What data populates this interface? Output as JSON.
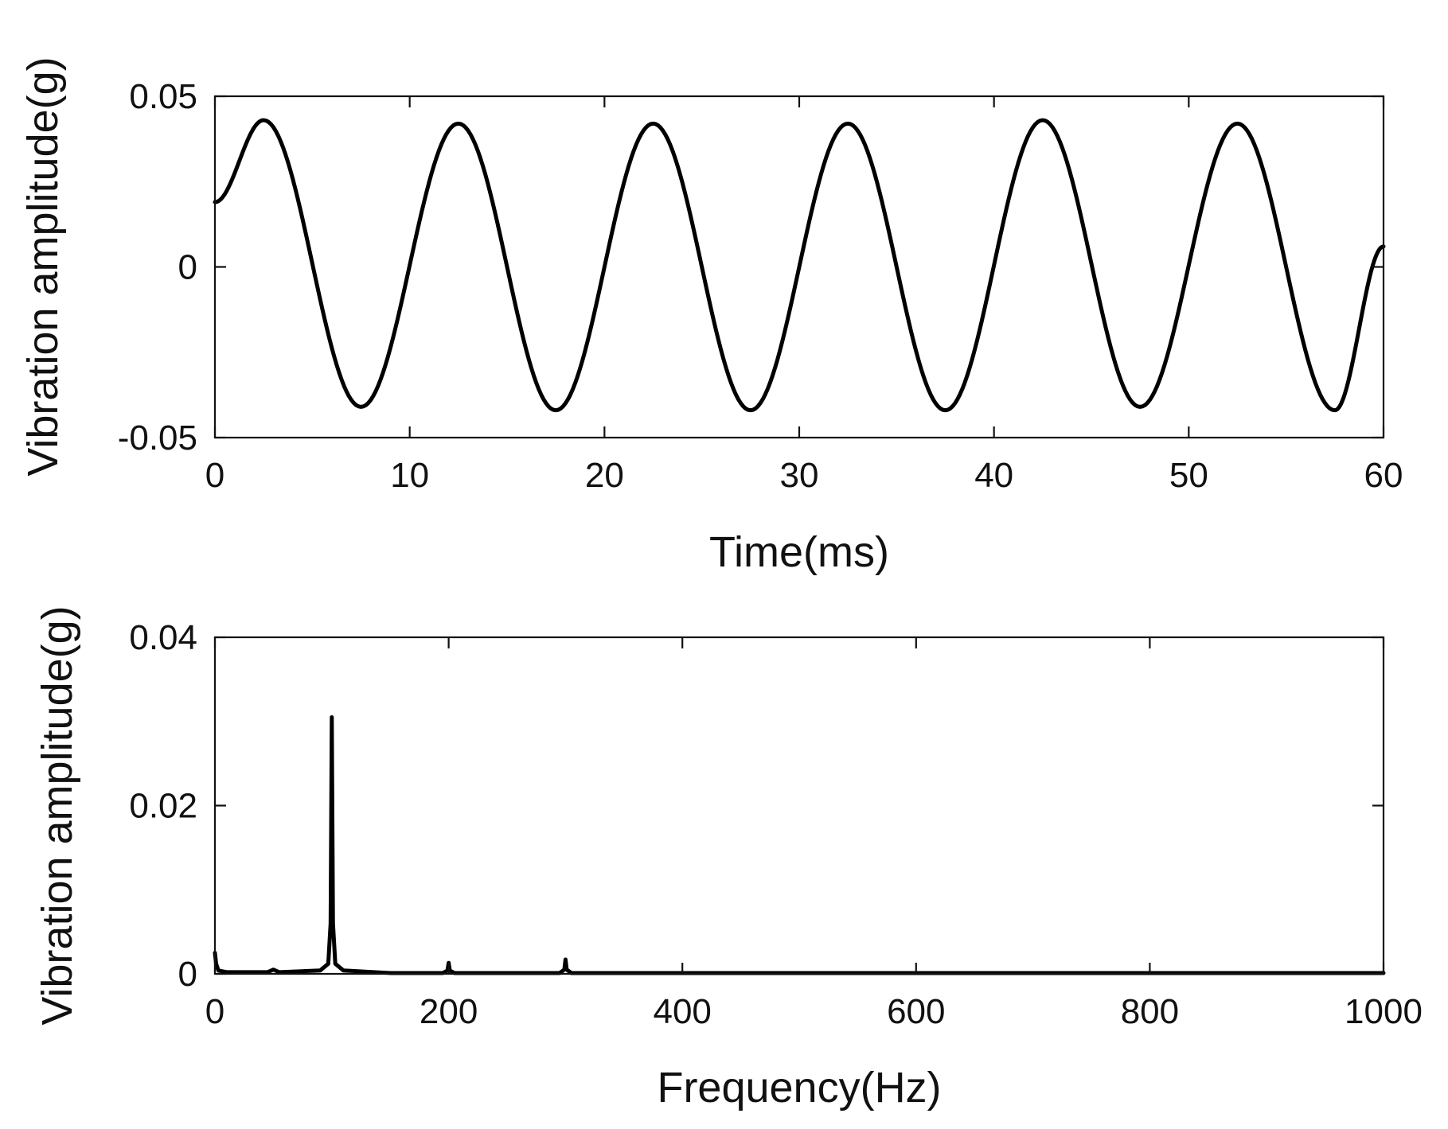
{
  "chart_data": [
    {
      "type": "line",
      "title": "",
      "xlabel": "Time(ms)",
      "ylabel": "Vibration amplitude(g)",
      "xlim": [
        0,
        60
      ],
      "ylim": [
        -0.05,
        0.05
      ],
      "xticks": [
        0,
        10,
        20,
        30,
        40,
        50,
        60
      ],
      "xtick_labels": [
        "0",
        "10",
        "20",
        "30",
        "40",
        "50",
        "60"
      ],
      "yticks": [
        -0.05,
        0,
        0.05
      ],
      "ytick_labels": [
        "-0.05",
        "0",
        "0.05"
      ],
      "grid": false,
      "line_color": "#000000",
      "series": [
        {
          "x": [
            0,
            2.5,
            7.5,
            12.5,
            17.5,
            22.5,
            27.5,
            32.5,
            37.5,
            42.5,
            47.5,
            52.5,
            57.5,
            60
          ],
          "y": [
            0.019,
            0.043,
            -0.041,
            0.042,
            -0.042,
            0.042,
            -0.042,
            0.042,
            -0.042,
            0.043,
            -0.041,
            0.042,
            -0.042,
            0.006
          ]
        }
      ]
    },
    {
      "type": "line",
      "title": "",
      "xlabel": "Frequency(Hz)",
      "ylabel": "Vibration amplitude(g)",
      "xlim": [
        0,
        1000
      ],
      "ylim": [
        0,
        0.04
      ],
      "xticks": [
        0,
        200,
        400,
        600,
        800,
        1000
      ],
      "xtick_labels": [
        "0",
        "200",
        "400",
        "600",
        "800",
        "1000"
      ],
      "yticks": [
        0,
        0.02,
        0.04
      ],
      "ytick_labels": [
        "0",
        "0.02",
        "0.04"
      ],
      "grid": false,
      "line_color": "#000000",
      "series": [
        {
          "x": [
            0,
            1,
            3,
            10,
            45,
            50,
            55,
            90,
            97,
            99,
            100,
            101,
            103,
            110,
            150,
            195,
            199,
            200,
            201,
            205,
            295,
            299,
            300,
            301,
            305,
            500,
            1000
          ],
          "y": [
            0.0025,
            0.0012,
            0.0004,
            0.0002,
            0.0002,
            0.0005,
            0.0002,
            0.0004,
            0.0012,
            0.006,
            0.0305,
            0.006,
            0.0012,
            0.0004,
            0.0001,
            0.0001,
            0.0004,
            0.0013,
            0.0004,
            0.0001,
            0.0001,
            0.0005,
            0.0017,
            0.0005,
            0.0001,
            0.0001,
            0.0001
          ]
        }
      ]
    }
  ]
}
